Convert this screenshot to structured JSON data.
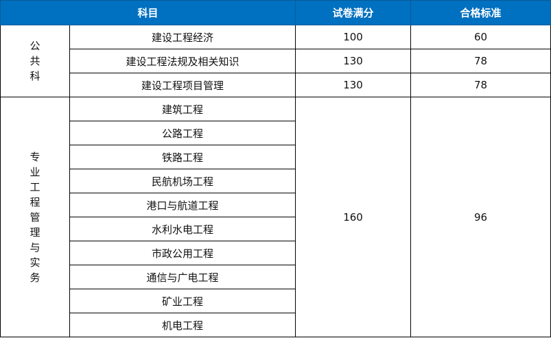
{
  "headers": {
    "subject": "科目",
    "full_score": "试卷满分",
    "passing": "合格标准"
  },
  "theme": {
    "header_bg": "#0070c0"
  },
  "public": {
    "group": [
      "公",
      "共",
      "科"
    ],
    "rows": [
      {
        "subject": "建设工程经济",
        "full_score": "100",
        "passing": "60"
      },
      {
        "subject": "建设工程法规及相关知识",
        "full_score": "130",
        "passing": "78"
      },
      {
        "subject": "建设工程项目管理",
        "full_score": "130",
        "passing": "78"
      }
    ]
  },
  "professional": {
    "group": [
      "专",
      "业",
      "工",
      "程",
      "管",
      "理",
      "与",
      "实",
      "务"
    ],
    "subjects": [
      "建筑工程",
      "公路工程",
      "铁路工程",
      "民航机场工程",
      "港口与航道工程",
      "水利水电工程",
      "市政公用工程",
      "通信与广电工程",
      "矿业工程",
      "机电工程"
    ],
    "full_score": "160",
    "passing": "96"
  }
}
